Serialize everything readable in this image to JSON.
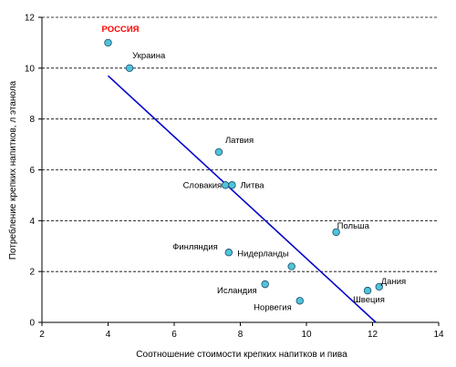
{
  "chart_data": {
    "type": "scatter",
    "xlabel": "Соотношение стоимости крепких напитков и пива",
    "ylabel": "Потребление крепких напитков, л  этанола",
    "xlim": [
      2,
      14
    ],
    "ylim": [
      0,
      12
    ],
    "xticks": [
      2,
      4,
      6,
      8,
      10,
      12,
      14
    ],
    "yticks": [
      0,
      2,
      4,
      6,
      8,
      10,
      12
    ],
    "grid": "horizontal-dashed",
    "colors": {
      "point": "#4fc3d9",
      "point_edge": "#1a4a6a",
      "trendline": "#0000cc",
      "highlight": "#ff0000"
    },
    "points": [
      {
        "label": "РОССИЯ",
        "x": 4.0,
        "y": 11.0,
        "highlight": true
      },
      {
        "label": "Украина",
        "x": 4.65,
        "y": 10.0
      },
      {
        "label": "Латвия",
        "x": 7.35,
        "y": 6.7
      },
      {
        "label": "Словакия",
        "x": 7.55,
        "y": 5.4
      },
      {
        "label": "Литва",
        "x": 7.75,
        "y": 5.4
      },
      {
        "label": "Польша",
        "x": 10.9,
        "y": 3.55
      },
      {
        "label": "Финляндия",
        "x": 7.65,
        "y": 2.75
      },
      {
        "label": "Нидерланды",
        "x": 9.55,
        "y": 2.2
      },
      {
        "label": "Исландия",
        "x": 8.75,
        "y": 1.5
      },
      {
        "label": "Норвегия",
        "x": 9.8,
        "y": 0.85
      },
      {
        "label": "Швеция",
        "x": 11.85,
        "y": 1.25
      },
      {
        "label": "Дания",
        "x": 12.2,
        "y": 1.4
      }
    ],
    "trendline": {
      "x": [
        4.0,
        12.1
      ],
      "y": [
        9.7,
        0.0
      ]
    }
  }
}
